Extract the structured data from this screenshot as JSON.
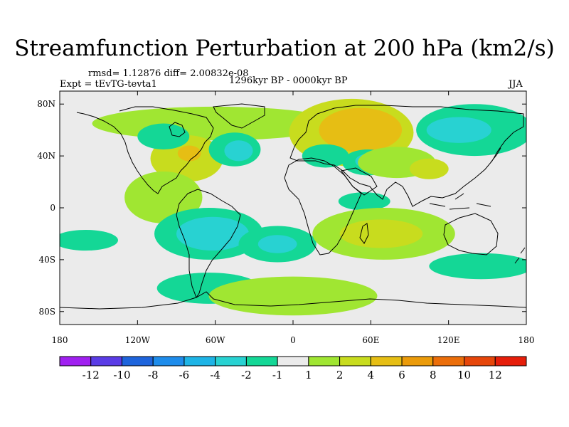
{
  "chart_data": {
    "type": "heatmap",
    "title": "Streamfunction Perturbation at 200 hPa (km2/s)",
    "stats_line": "rmsd= 1.12876 diff= 2.00832e-08",
    "experiment": "Expt = tEvTG-tevta1",
    "period": "1296kyr BP - 0000kyr BP",
    "season": "JJA",
    "x_axis": {
      "range": [
        -180,
        180
      ],
      "ticks": [
        {
          "value": -180,
          "label": "180"
        },
        {
          "value": -120,
          "label": "120W"
        },
        {
          "value": -60,
          "label": "60W"
        },
        {
          "value": 0,
          "label": "0"
        },
        {
          "value": 60,
          "label": "60E"
        },
        {
          "value": 120,
          "label": "120E"
        },
        {
          "value": 180,
          "label": "180"
        }
      ]
    },
    "y_axis": {
      "range": [
        -90,
        90
      ],
      "ticks": [
        {
          "value": 80,
          "label": "80N"
        },
        {
          "value": 40,
          "label": "40N"
        },
        {
          "value": 0,
          "label": "0"
        },
        {
          "value": -40,
          "label": "40S"
        },
        {
          "value": -80,
          "label": "80S"
        }
      ]
    },
    "colorbar": {
      "labels": [
        "-12",
        "-10",
        "-8",
        "-6",
        "-4",
        "-2",
        "-1",
        "1",
        "2",
        "4",
        "6",
        "8",
        "10",
        "12"
      ],
      "colors": [
        "#a020f0",
        "#5a3ce6",
        "#1e64dc",
        "#1e8ceb",
        "#1eb4e6",
        "#28d2d2",
        "#14d796",
        "#ebebeb",
        "#a0e632",
        "#c8dc1e",
        "#e6be14",
        "#eb9b0a",
        "#eb6e0a",
        "#e6460a",
        "#e61e0a"
      ]
    },
    "background_color": "#ebebeb",
    "anomalies": [
      {
        "lon": -60,
        "lat": 65,
        "rx": 95,
        "ry": 13,
        "value": 1.5
      },
      {
        "lon": -82,
        "lat": 38,
        "rx": 28,
        "ry": 18,
        "value": 2.5
      },
      {
        "lon": -80,
        "lat": 42,
        "rx": 9,
        "ry": 6,
        "value": 4.5
      },
      {
        "lon": -100,
        "lat": 8,
        "rx": 30,
        "ry": 20,
        "value": 1.5
      },
      {
        "lon": -100,
        "lat": 55,
        "rx": 20,
        "ry": 10,
        "value": -1.5
      },
      {
        "lon": -45,
        "lat": 45,
        "rx": 20,
        "ry": 13,
        "value": -1.5
      },
      {
        "lon": -42,
        "lat": 44,
        "rx": 11,
        "ry": 8,
        "value": -3
      },
      {
        "lon": -65,
        "lat": -20,
        "rx": 42,
        "ry": 20,
        "value": -1.5
      },
      {
        "lon": -62,
        "lat": -20,
        "rx": 28,
        "ry": 13,
        "value": -3
      },
      {
        "lon": -65,
        "lat": -62,
        "rx": 40,
        "ry": 12,
        "value": -1.5
      },
      {
        "lon": -160,
        "lat": -25,
        "rx": 25,
        "ry": 8,
        "value": -1.5
      },
      {
        "lon": -12,
        "lat": -28,
        "rx": 30,
        "ry": 14,
        "value": -1.5
      },
      {
        "lon": -12,
        "lat": -28,
        "rx": 15,
        "ry": 7,
        "value": -3
      },
      {
        "lon": 45,
        "lat": 58,
        "rx": 48,
        "ry": 26,
        "value": 2.5
      },
      {
        "lon": 52,
        "lat": 60,
        "rx": 32,
        "ry": 17,
        "value": 4.5
      },
      {
        "lon": 25,
        "lat": 40,
        "rx": 18,
        "ry": 9,
        "value": -1.5
      },
      {
        "lon": 58,
        "lat": 35,
        "rx": 20,
        "ry": 10,
        "value": -1.5
      },
      {
        "lon": 60,
        "lat": 36,
        "rx": 12,
        "ry": 6,
        "value": -3
      },
      {
        "lon": 80,
        "lat": 35,
        "rx": 30,
        "ry": 12,
        "value": 1.5
      },
      {
        "lon": 105,
        "lat": 30,
        "rx": 15,
        "ry": 8,
        "value": 2.5
      },
      {
        "lon": 55,
        "lat": 5,
        "rx": 20,
        "ry": 7,
        "value": -1.5
      },
      {
        "lon": 70,
        "lat": -20,
        "rx": 55,
        "ry": 20,
        "value": 1.5
      },
      {
        "lon": 68,
        "lat": -20,
        "rx": 32,
        "ry": 11,
        "value": 2.5
      },
      {
        "lon": 0,
        "lat": -68,
        "rx": 65,
        "ry": 15,
        "value": 1.5
      },
      {
        "lon": 140,
        "lat": 60,
        "rx": 45,
        "ry": 20,
        "value": -1.5
      },
      {
        "lon": 128,
        "lat": 60,
        "rx": 25,
        "ry": 10,
        "value": -3
      },
      {
        "lon": 145,
        "lat": -45,
        "rx": 40,
        "ry": 10,
        "value": -1.5
      }
    ]
  }
}
